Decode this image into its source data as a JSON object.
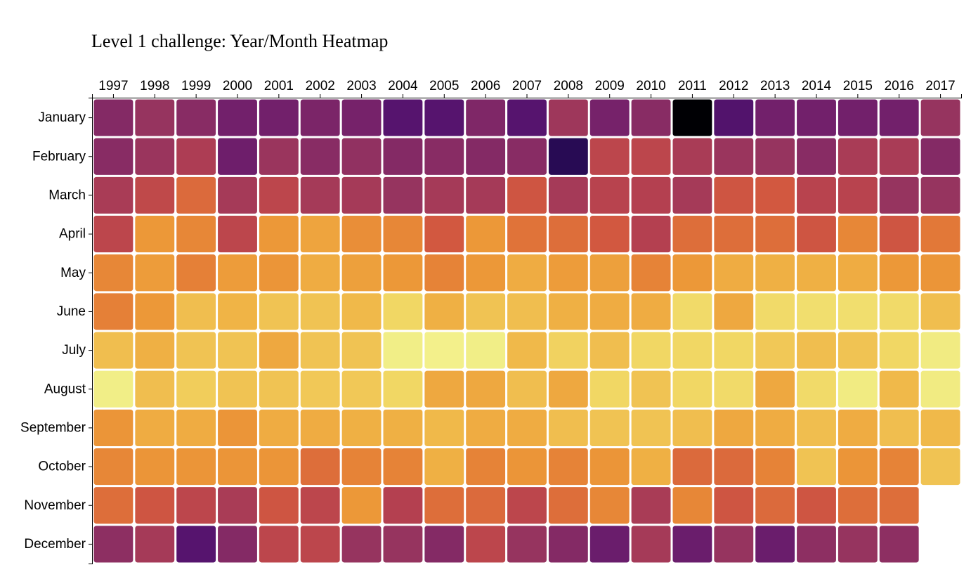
{
  "chart_data": {
    "type": "heatmap",
    "title": "Level 1 challenge: Year/Month Heatmap",
    "xlabel": "",
    "ylabel": "",
    "x_categories": [
      "1997",
      "1998",
      "1999",
      "2000",
      "2001",
      "2002",
      "2003",
      "2004",
      "2005",
      "2006",
      "2007",
      "2008",
      "2009",
      "2010",
      "2011",
      "2012",
      "2013",
      "2014",
      "2015",
      "2016",
      "2017"
    ],
    "y_categories": [
      "January",
      "February",
      "March",
      "April",
      "May",
      "June",
      "July",
      "August",
      "September",
      "October",
      "November",
      "December"
    ],
    "x_axis_position": "top",
    "y_axis_position": "left",
    "color_scale": "inferno (dark purple = low, pale yellow = high)",
    "grid": false,
    "legend": "none",
    "values": [
      [
        0.36,
        0.4,
        0.37,
        0.32,
        0.32,
        0.34,
        0.33,
        0.25,
        0.25,
        0.35,
        0.25,
        0.42,
        0.33,
        0.37,
        0.0,
        0.24,
        0.32,
        0.32,
        0.32,
        0.32,
        0.4
      ],
      [
        0.37,
        0.41,
        0.46,
        0.31,
        0.41,
        0.37,
        0.39,
        0.36,
        0.37,
        0.36,
        0.37,
        0.14,
        0.5,
        0.5,
        0.45,
        0.41,
        0.4,
        0.37,
        0.45,
        0.45,
        0.36
      ],
      [
        0.45,
        0.51,
        0.6,
        0.44,
        0.5,
        0.44,
        0.44,
        0.4,
        0.44,
        0.44,
        0.55,
        0.44,
        0.49,
        0.48,
        0.44,
        0.55,
        0.56,
        0.49,
        0.49,
        0.4,
        0.4
      ],
      [
        0.5,
        0.72,
        0.67,
        0.5,
        0.72,
        0.75,
        0.69,
        0.67,
        0.56,
        0.72,
        0.62,
        0.61,
        0.56,
        0.48,
        0.61,
        0.61,
        0.61,
        0.55,
        0.67,
        0.55,
        0.63
      ],
      [
        0.67,
        0.73,
        0.65,
        0.73,
        0.71,
        0.77,
        0.74,
        0.72,
        0.66,
        0.72,
        0.77,
        0.73,
        0.74,
        0.66,
        0.72,
        0.77,
        0.78,
        0.78,
        0.77,
        0.72,
        0.71
      ],
      [
        0.65,
        0.72,
        0.81,
        0.79,
        0.82,
        0.82,
        0.8,
        0.86,
        0.78,
        0.82,
        0.81,
        0.78,
        0.77,
        0.77,
        0.87,
        0.76,
        0.87,
        0.88,
        0.88,
        0.87,
        0.81
      ],
      [
        0.81,
        0.78,
        0.82,
        0.82,
        0.76,
        0.82,
        0.82,
        0.93,
        0.94,
        0.93,
        0.8,
        0.85,
        0.81,
        0.86,
        0.86,
        0.86,
        0.83,
        0.81,
        0.82,
        0.86,
        0.92
      ],
      [
        0.93,
        0.81,
        0.84,
        0.82,
        0.82,
        0.83,
        0.83,
        0.86,
        0.76,
        0.76,
        0.81,
        0.76,
        0.86,
        0.82,
        0.86,
        0.87,
        0.76,
        0.87,
        0.92,
        0.8,
        0.92
      ],
      [
        0.71,
        0.77,
        0.77,
        0.71,
        0.77,
        0.77,
        0.78,
        0.78,
        0.8,
        0.77,
        0.77,
        0.81,
        0.82,
        0.82,
        0.81,
        0.76,
        0.77,
        0.81,
        0.77,
        0.81,
        0.8
      ],
      [
        0.67,
        0.71,
        0.71,
        0.71,
        0.71,
        0.61,
        0.66,
        0.66,
        0.78,
        0.66,
        0.71,
        0.66,
        0.71,
        0.78,
        0.6,
        0.6,
        0.66,
        0.82,
        0.71,
        0.66,
        0.82
      ],
      [
        0.61,
        0.55,
        0.5,
        0.45,
        0.55,
        0.5,
        0.72,
        0.48,
        0.61,
        0.6,
        0.5,
        0.61,
        0.67,
        0.45,
        0.67,
        0.55,
        0.6,
        0.55,
        0.61,
        0.61,
        null
      ],
      [
        0.38,
        0.44,
        0.25,
        0.36,
        0.5,
        0.5,
        0.4,
        0.4,
        0.36,
        0.5,
        0.4,
        0.36,
        0.3,
        0.44,
        0.3,
        0.4,
        0.3,
        0.38,
        0.4,
        0.38,
        null
      ]
    ]
  }
}
